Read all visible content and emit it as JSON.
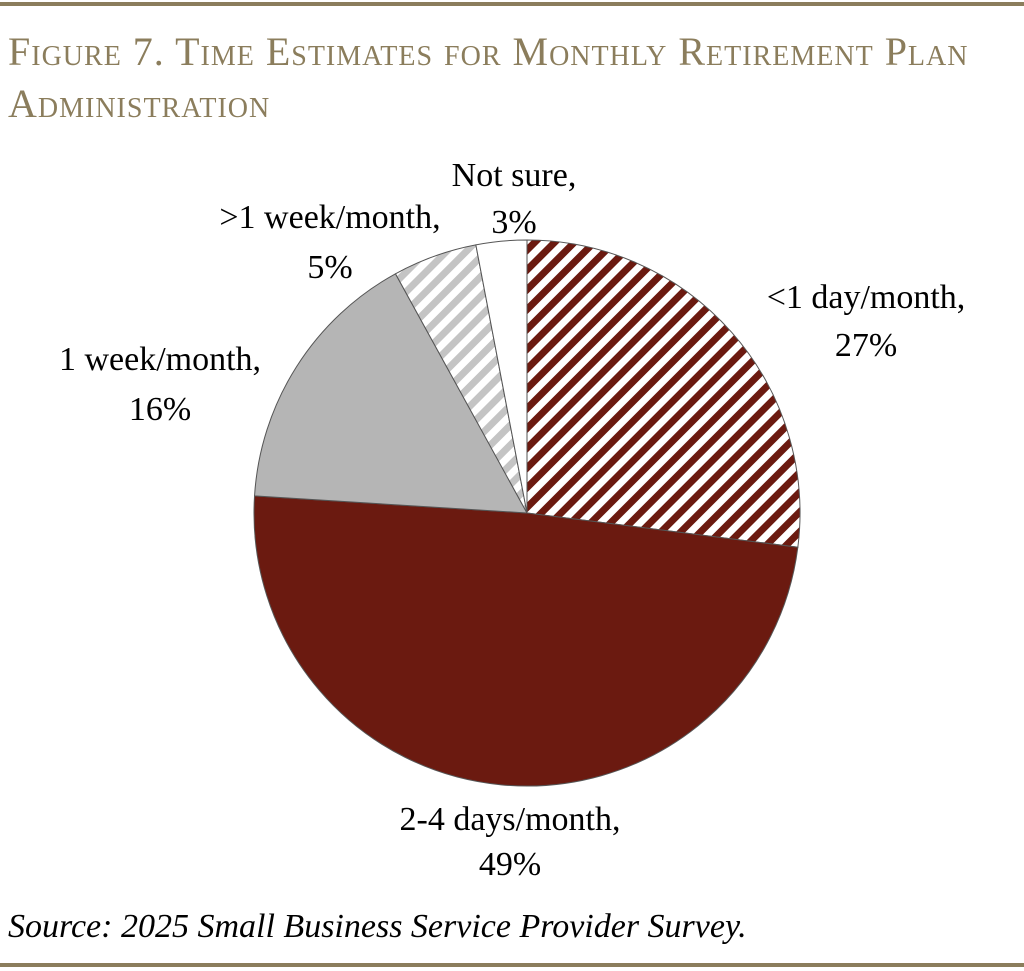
{
  "colors": {
    "rule": "#8b7d5c",
    "title": "#8b7d5c",
    "maroon": "#6b1a10",
    "gray": "#b5b5b5",
    "light_gray": "#cfcfcf",
    "white": "#ffffff",
    "edge": "#555555"
  },
  "title": "Figure 7. Time Estimates for Monthly Retirement Plan Administration",
  "source": "Source: 2025 Small Business Service Provider Survey.",
  "chart_data": {
    "type": "pie",
    "title": "Figure 7. Time Estimates for Monthly Retirement Plan Administration",
    "unit": "%",
    "slices": [
      {
        "label": "<1 day/month,",
        "value": 27,
        "value_label": "27%",
        "fill": "maroon-hatch"
      },
      {
        "label": "2-4 days/month,",
        "value": 49,
        "value_label": "49%",
        "fill": "maroon"
      },
      {
        "label": "1 week/month,",
        "value": 16,
        "value_label": "16%",
        "fill": "gray"
      },
      {
        "label": ">1 week/month,",
        "value": 5,
        "value_label": "5%",
        "fill": "gray-hatch"
      },
      {
        "label": "Not sure,",
        "value": 3,
        "value_label": "3%",
        "fill": "white"
      }
    ],
    "legend": "none (direct labels)"
  }
}
